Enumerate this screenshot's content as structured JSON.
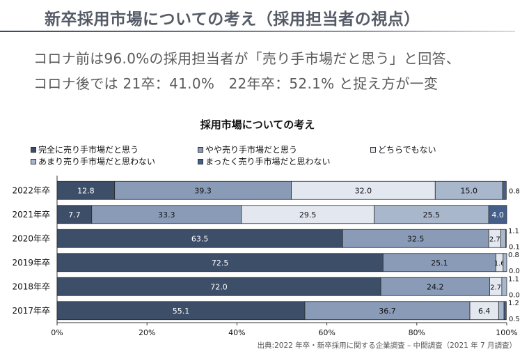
{
  "slide": {
    "title": "新卒採用市場についての考え（採用担当者の視点）",
    "headline_line1": "コロナ前は96.0%の採用担当者が「売り手市場だと思う」と回答、",
    "headline_line2": "コロナ後では 21卒：41.0%　22年卒：52.1% と捉え方が一変",
    "source": "出典:2022 年卒・新卒採用に関する企業調査 – 中間調査（2021 年 7 月調査）"
  },
  "chart_data": {
    "type": "bar",
    "orientation": "horizontal",
    "stacked": true,
    "title": "採用市場についての考え",
    "categories": [
      "2022年卒",
      "2021年卒",
      "2020年卒",
      "2019年卒",
      "2018年卒",
      "2017年卒"
    ],
    "series": [
      {
        "name": "完全に売り手市場だと思う",
        "color": "#3d4e69",
        "values": [
          12.8,
          7.7,
          63.5,
          72.5,
          72.0,
          55.1
        ]
      },
      {
        "name": "やや売り手市場だと思う",
        "color": "#8a9bb8",
        "values": [
          39.3,
          33.3,
          32.5,
          25.1,
          24.2,
          36.7
        ]
      },
      {
        "name": "どちらでもない",
        "color": "#e3e8f0",
        "values": [
          32.0,
          29.5,
          2.7,
          1.6,
          2.7,
          6.4
        ]
      },
      {
        "name": "あまり売り手市場だと思わない",
        "color": "#a9b7cc",
        "values": [
          15.0,
          25.5,
          1.1,
          0.8,
          1.1,
          1.2
        ]
      },
      {
        "name": "まったく売り手市場だと思わない",
        "color": "#44608a",
        "values": [
          0.8,
          4.0,
          0.1,
          0.0,
          0.0,
          0.5
        ]
      }
    ],
    "segment_labels": [
      [
        "12.8",
        "39.3",
        "32.0",
        "15.0",
        "0.8"
      ],
      [
        "7.7",
        "33.3",
        "29.5",
        "25.5",
        "4.0"
      ],
      [
        "63.5",
        "32.5",
        "2.7",
        "1.1",
        "0.1"
      ],
      [
        "72.5",
        "25.1",
        "1.6",
        "0.8",
        "0.0"
      ],
      [
        "72.0",
        "24.2",
        "2.7",
        "1.1",
        "0.0"
      ],
      [
        "55.1",
        "36.7",
        "6.4",
        "1.2",
        "0.5"
      ]
    ],
    "xlim": [
      0,
      100
    ],
    "xticks": [
      "0%",
      "20%",
      "40%",
      "60%",
      "80%",
      "100%"
    ],
    "legend_position": "top"
  }
}
